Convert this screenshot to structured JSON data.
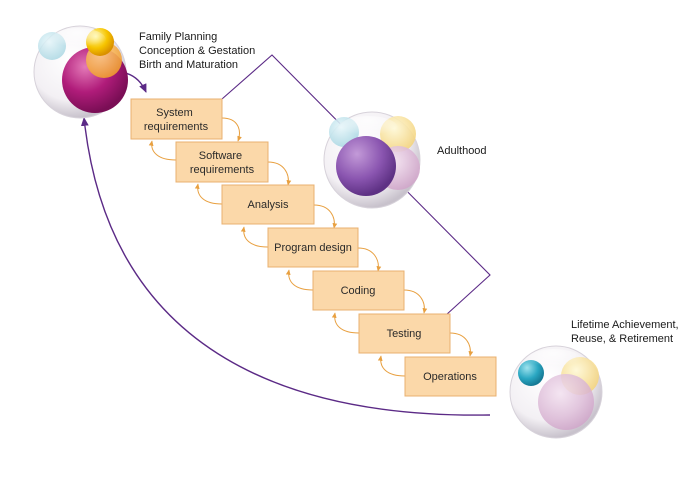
{
  "stages": {
    "birth": [
      "Family Planning",
      "Conception & Gestation",
      "Birth and Maturation"
    ],
    "adulthood": "Adulthood",
    "retirement": [
      "Lifetime Achievement,",
      "Reuse, & Retirement"
    ]
  },
  "steps": [
    [
      "System",
      "requirements"
    ],
    [
      "Software",
      "requirements"
    ],
    [
      "Analysis"
    ],
    [
      "Program design"
    ],
    [
      "Coding"
    ],
    [
      "Testing"
    ],
    [
      "Operations"
    ]
  ],
  "colors": {
    "box_fill": "#fbd8a9",
    "box_stroke": "#e8b070",
    "arrow_orange": "#e8a040",
    "line_purple": "#5b2a86"
  }
}
